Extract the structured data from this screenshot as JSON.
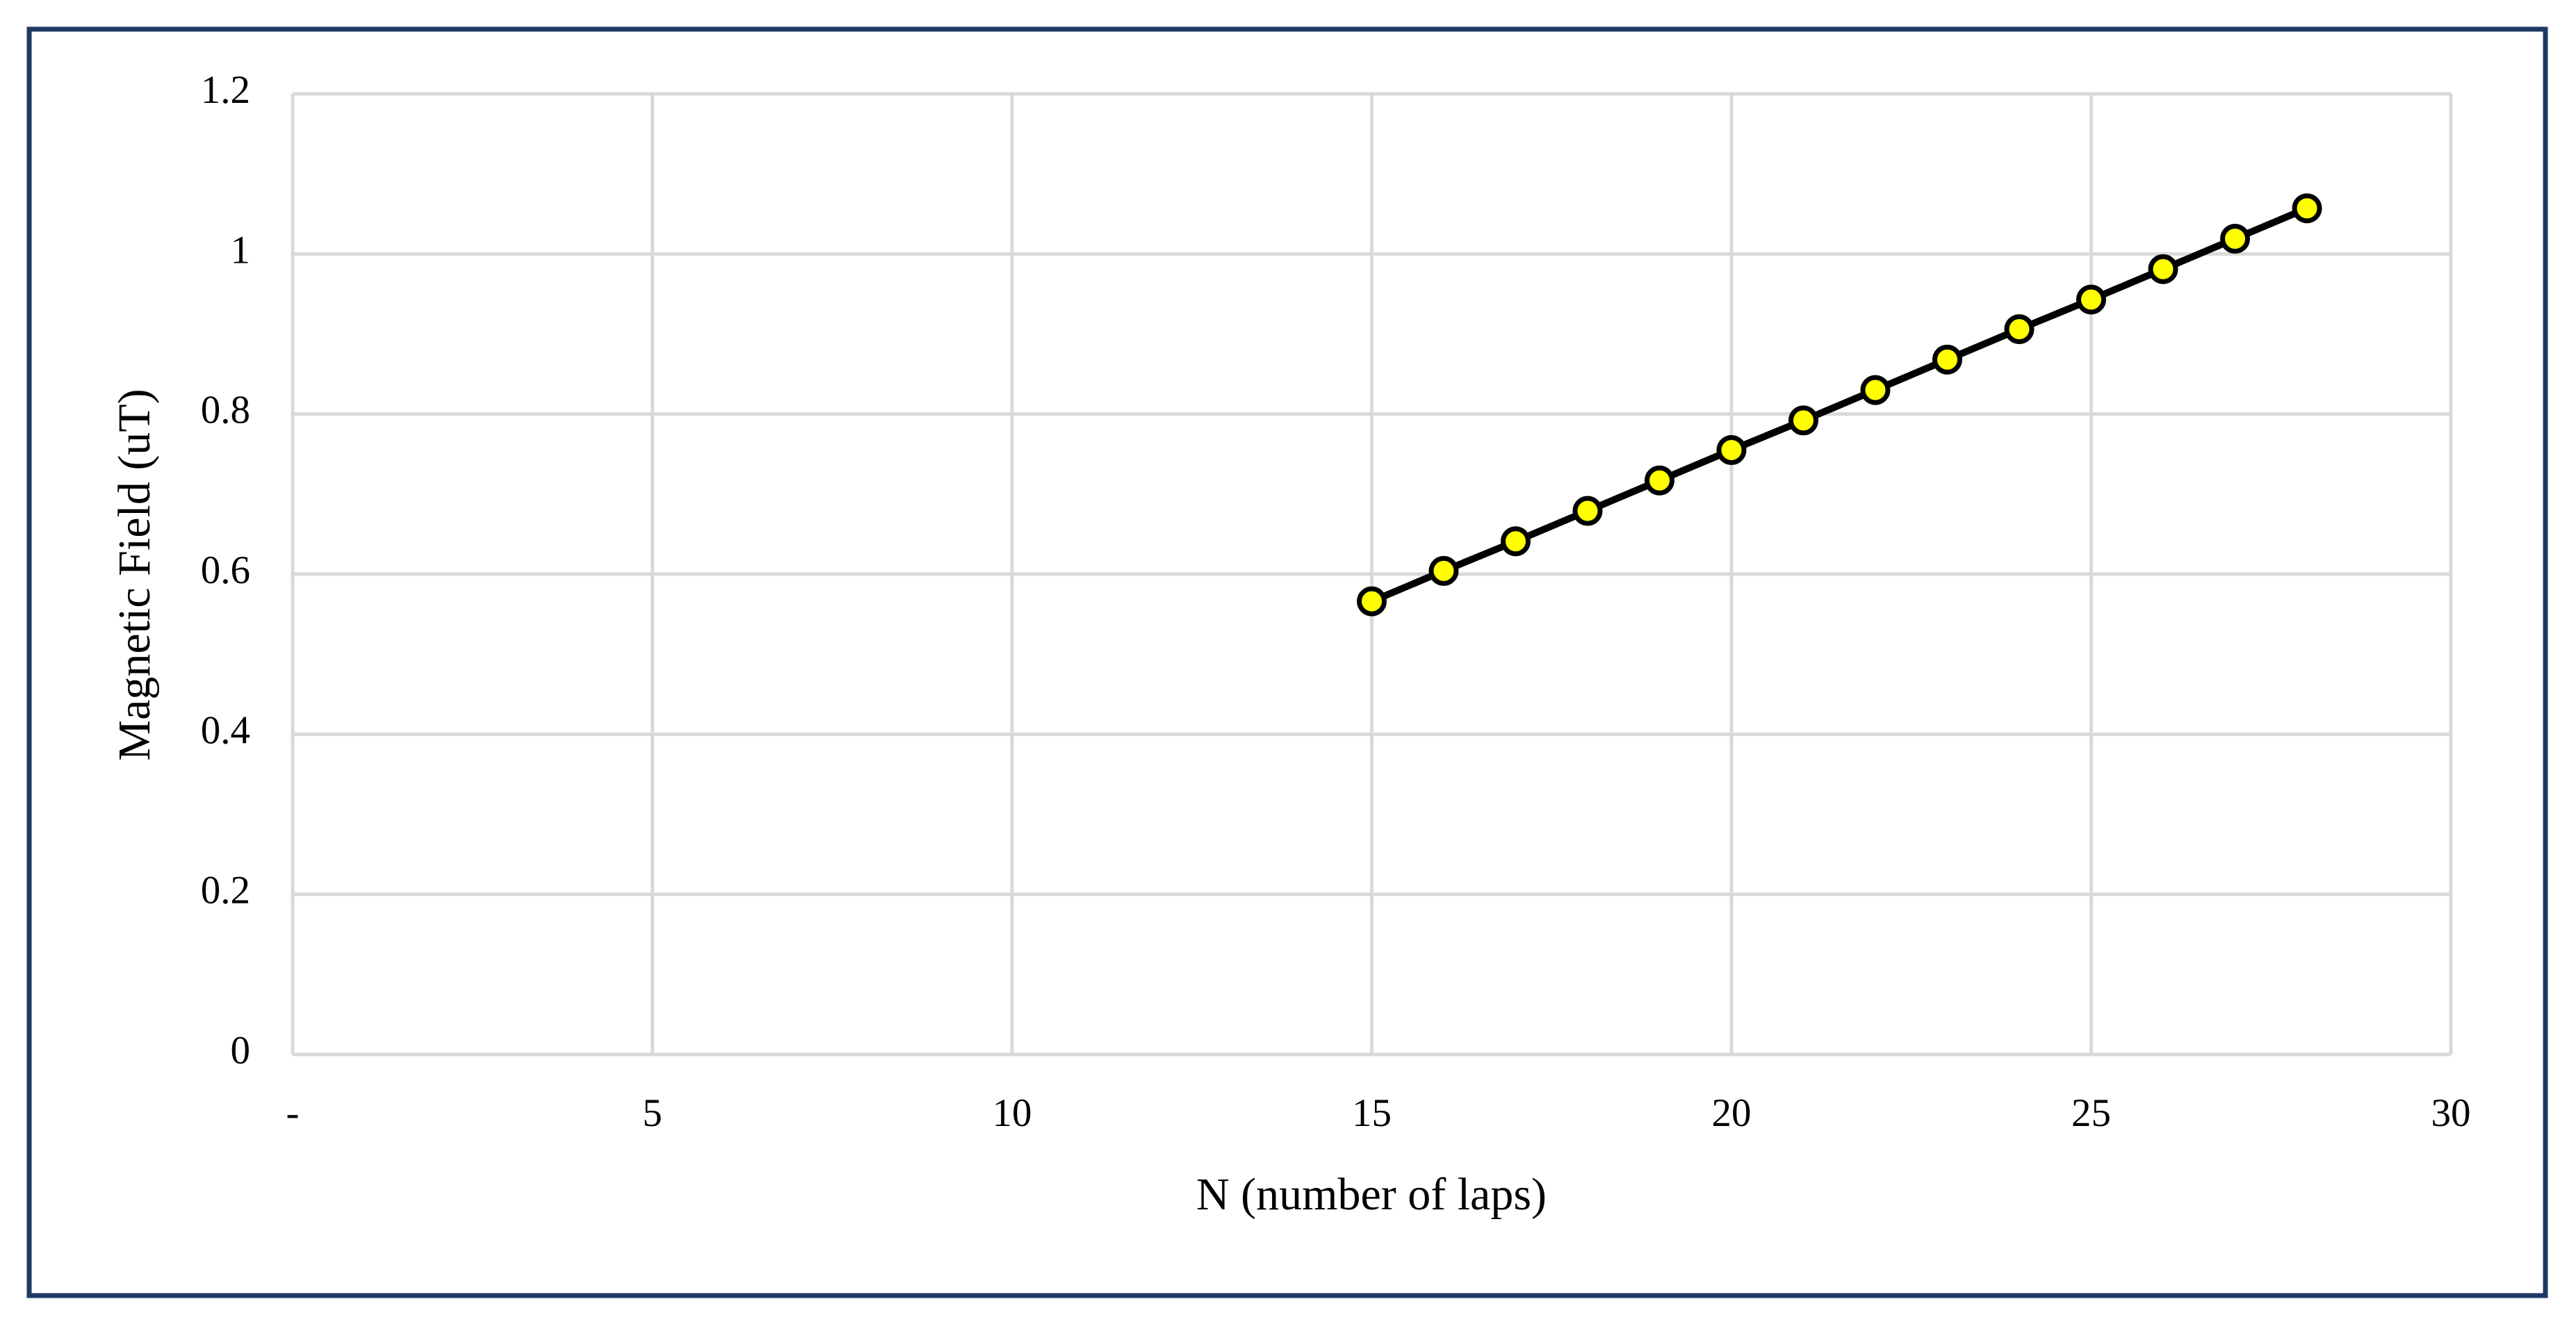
{
  "chart_data": {
    "type": "line",
    "x_label": "N (number of laps)",
    "y_label": "Magnetic Field (uT)",
    "x": [
      15,
      16,
      17,
      18,
      19,
      20,
      21,
      22,
      23,
      24,
      25,
      26,
      27,
      28
    ],
    "series": [
      {
        "name": "Magnetic Field",
        "color": "#ffff00",
        "values": [
          0.566,
          0.604,
          0.641,
          0.679,
          0.717,
          0.755,
          0.792,
          0.83,
          0.868,
          0.906,
          0.943,
          0.981,
          1.019,
          1.057
        ]
      }
    ],
    "xlim": [
      0,
      30
    ],
    "xticks": [
      {
        "value": 0,
        "label": "-"
      },
      5,
      10,
      15,
      20,
      25,
      30
    ],
    "ylim": [
      0,
      1.2
    ],
    "yticks": [
      0,
      0.2,
      0.4,
      0.6,
      0.8,
      1,
      1.2
    ],
    "grid": true
  }
}
